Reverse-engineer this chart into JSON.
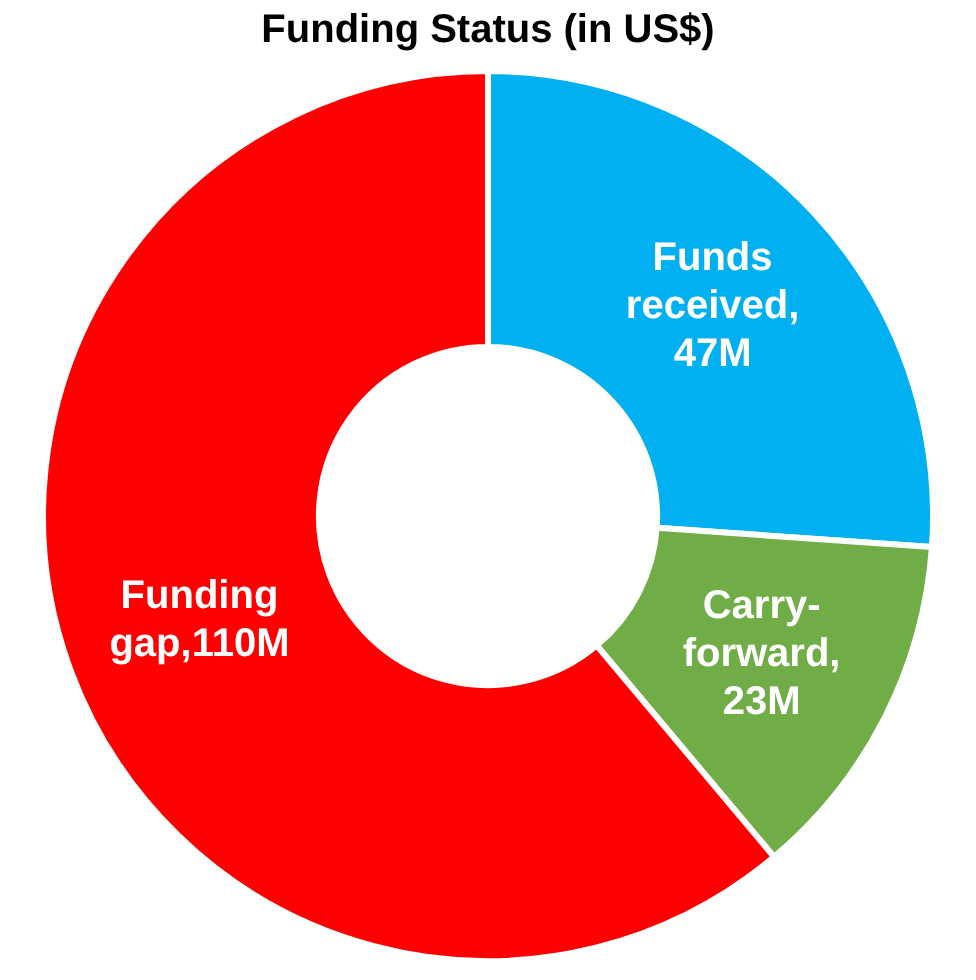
{
  "chart_data": {
    "type": "donut",
    "title": "Funding Status (in US$)",
    "categories": [
      "Funds received",
      "Carry-forward",
      "Funding gap"
    ],
    "values": [
      47,
      23,
      110
    ],
    "colors": [
      "#00b0f0",
      "#70ad47",
      "#ff0000"
    ],
    "value_labels": [
      ", 47M",
      ", 23M",
      ",110M"
    ],
    "legend": false
  }
}
